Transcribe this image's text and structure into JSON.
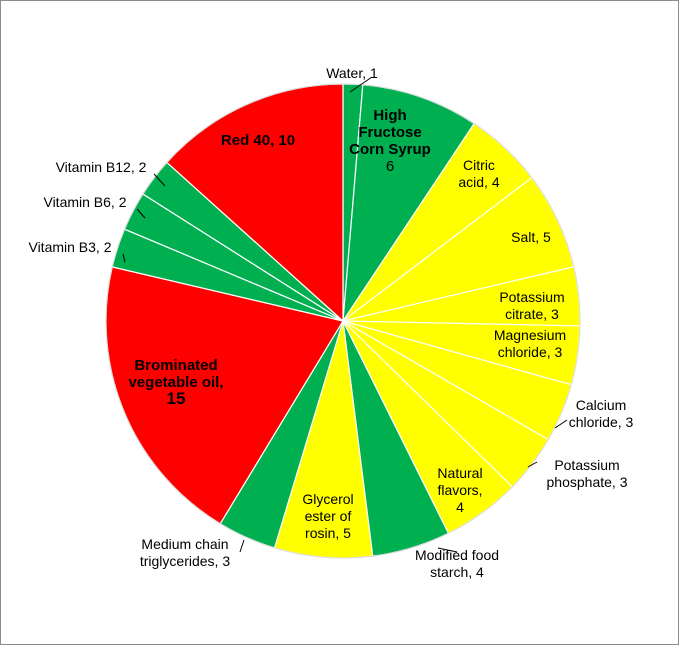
{
  "chart_data": {
    "type": "pie",
    "categories": [
      "Water",
      "High Fructose Corn Syrup",
      "Citric acid",
      "Salt",
      "Potassium citrate",
      "Magnesium chloride",
      "Calcium chloride",
      "Potassium phosphate",
      "Natural flavors",
      "Modified food starch",
      "Glycerol ester of rosin",
      "Medium chain triglycerides",
      "Brominated vegetable oil",
      "Vitamin B3",
      "Vitamin B6",
      "Vitamin B12",
      "Red 40"
    ],
    "values": [
      1,
      6,
      4,
      5,
      3,
      3,
      3,
      3,
      4,
      4,
      5,
      3,
      15,
      2,
      2,
      2,
      10
    ],
    "colors": [
      "#00b050",
      "#00b050",
      "#ffff00",
      "#ffff00",
      "#ffff00",
      "#ffff00",
      "#ffff00",
      "#ffff00",
      "#ffff00",
      "#00b050",
      "#ffff00",
      "#00b050",
      "#ff0000",
      "#00b050",
      "#00b050",
      "#00b050",
      "#ff0000"
    ],
    "start_angle_deg": 0,
    "direction": "clockwise",
    "labels": [
      {
        "lines": [
          "Water, 1"
        ],
        "bold": false
      },
      {
        "lines": [
          "High",
          "Fructose",
          "Corn Syrup",
          "6"
        ],
        "bold_lines": [
          0,
          1,
          2
        ]
      },
      {
        "lines": [
          "Citric",
          "acid, 4"
        ],
        "bold": false
      },
      {
        "lines": [
          "Salt, 5"
        ],
        "bold": false
      },
      {
        "lines": [
          "Potassium",
          "citrate, 3"
        ],
        "bold": false
      },
      {
        "lines": [
          "Magnesium",
          "chloride, 3"
        ],
        "bold": false
      },
      {
        "lines": [
          "Calcium",
          "chloride, 3"
        ],
        "bold": false
      },
      {
        "lines": [
          "Potassium",
          "phosphate, 3"
        ],
        "bold": false
      },
      {
        "lines": [
          "Natural",
          "flavors,",
          "4"
        ],
        "bold": false
      },
      {
        "lines": [
          "Modified food",
          "starch, 4"
        ],
        "bold": false
      },
      {
        "lines": [
          "Glycerol",
          "ester of",
          "rosin, 5"
        ],
        "bold": false
      },
      {
        "lines": [
          "Medium chain",
          "triglycerides, 3"
        ],
        "bold": false
      },
      {
        "lines": [
          "Brominated",
          "vegetable oil,",
          "15"
        ],
        "bold_lines": [
          0,
          1,
          2
        ]
      },
      {
        "lines": [
          "Vitamin B3, 2"
        ],
        "bold": false
      },
      {
        "lines": [
          "Vitamin B6, 2"
        ],
        "bold": false
      },
      {
        "lines": [
          "Vitamin B12, 2"
        ],
        "bold": false
      },
      {
        "lines": [
          "Red 40, 10"
        ],
        "bold": true
      }
    ]
  }
}
